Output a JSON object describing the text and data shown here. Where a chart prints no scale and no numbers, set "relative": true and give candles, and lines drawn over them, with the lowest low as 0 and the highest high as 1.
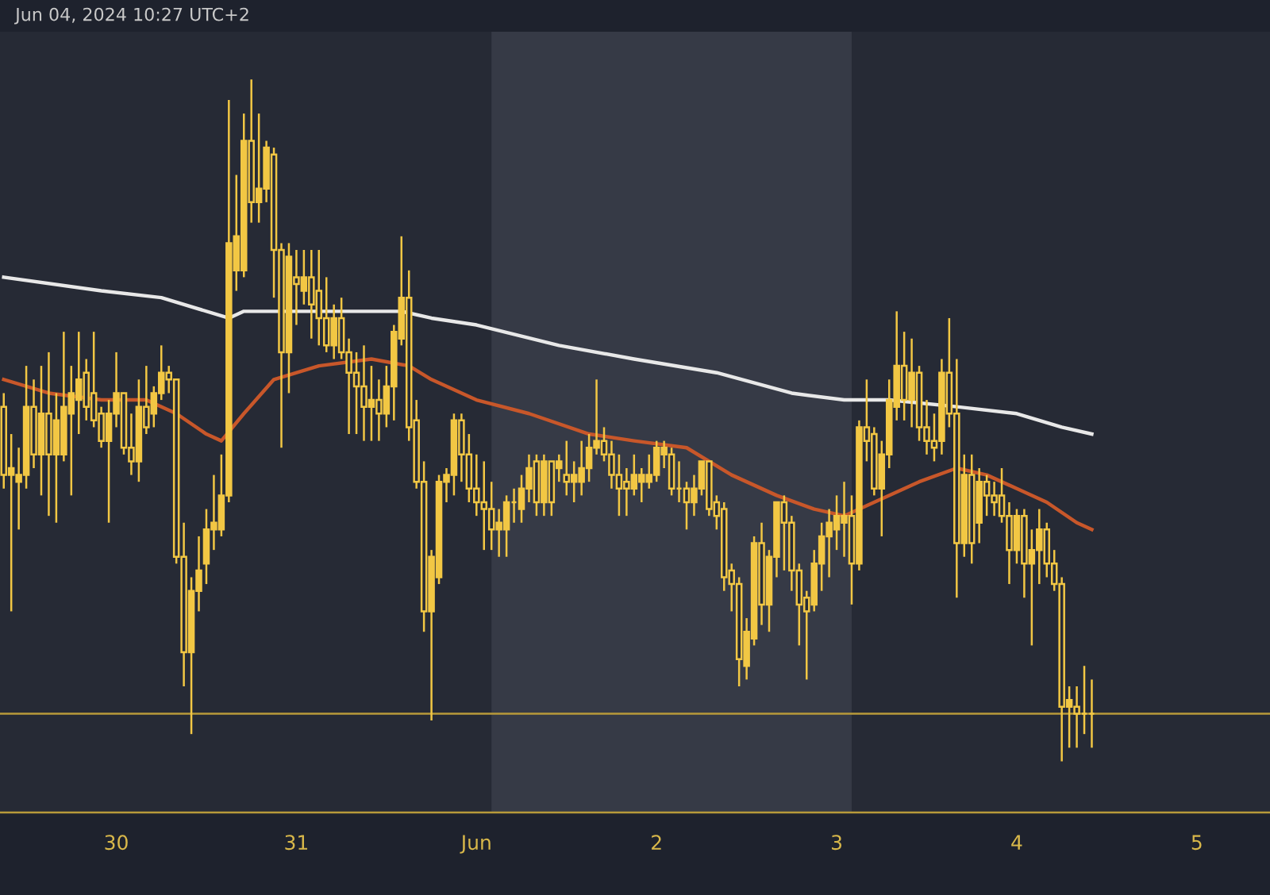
{
  "chart_data": {
    "type": "candlestick",
    "relative": true,
    "annotations": [
      "Jun 04, 2024 10:27 UTC+2"
    ],
    "x": [
      "2024-05-29T09:00",
      "2024-05-29T10:00",
      "2024-05-29T11:00",
      "2024-05-29T12:00",
      "2024-05-29T13:00",
      "2024-05-29T14:00",
      "2024-05-29T15:00",
      "2024-05-29T16:00",
      "2024-05-29T17:00",
      "2024-05-29T18:00",
      "2024-05-29T19:00",
      "2024-05-29T20:00",
      "2024-05-29T21:00",
      "2024-05-29T22:00",
      "2024-05-29T23:00",
      "2024-05-30T00:00",
      "2024-05-30T01:00",
      "2024-05-30T02:00",
      "2024-05-30T03:00",
      "2024-05-30T04:00",
      "2024-05-30T05:00",
      "2024-05-30T06:00",
      "2024-05-30T07:00",
      "2024-05-30T08:00",
      "2024-05-30T09:00",
      "2024-05-30T10:00",
      "2024-05-30T11:00",
      "2024-05-30T12:00",
      "2024-05-30T13:00",
      "2024-05-30T14:00",
      "2024-05-30T15:00",
      "2024-05-30T16:00",
      "2024-05-30T17:00",
      "2024-05-30T18:00",
      "2024-05-30T19:00",
      "2024-05-30T20:00",
      "2024-05-30T21:00",
      "2024-05-30T22:00",
      "2024-05-30T23:00",
      "2024-05-31T00:00",
      "2024-05-31T01:00",
      "2024-05-31T02:00",
      "2024-05-31T03:00",
      "2024-05-31T04:00",
      "2024-05-31T05:00",
      "2024-05-31T06:00",
      "2024-05-31T07:00",
      "2024-05-31T08:00",
      "2024-05-31T09:00",
      "2024-05-31T10:00",
      "2024-05-31T11:00",
      "2024-05-31T12:00",
      "2024-05-31T13:00",
      "2024-05-31T14:00",
      "2024-05-31T15:00",
      "2024-05-31T16:00",
      "2024-05-31T17:00",
      "2024-05-31T18:00",
      "2024-05-31T19:00",
      "2024-05-31T20:00",
      "2024-05-31T21:00",
      "2024-05-31T22:00",
      "2024-05-31T23:00",
      "2024-06-01T00:00",
      "2024-06-01T01:00",
      "2024-06-01T02:00",
      "2024-06-01T03:00",
      "2024-06-01T04:00",
      "2024-06-01T05:00",
      "2024-06-01T06:00",
      "2024-06-01T07:00",
      "2024-06-01T08:00",
      "2024-06-01T09:00",
      "2024-06-01T10:00",
      "2024-06-01T11:00",
      "2024-06-01T12:00",
      "2024-06-01T13:00",
      "2024-06-01T14:00",
      "2024-06-01T15:00",
      "2024-06-01T16:00",
      "2024-06-01T17:00",
      "2024-06-01T18:00",
      "2024-06-01T19:00",
      "2024-06-01T20:00",
      "2024-06-01T21:00",
      "2024-06-01T22:00",
      "2024-06-01T23:00",
      "2024-06-02T00:00",
      "2024-06-02T01:00",
      "2024-06-02T02:00",
      "2024-06-02T03:00",
      "2024-06-02T04:00",
      "2024-06-02T05:00",
      "2024-06-02T06:00",
      "2024-06-02T07:00",
      "2024-06-02T08:00",
      "2024-06-02T09:00",
      "2024-06-02T10:00",
      "2024-06-02T11:00",
      "2024-06-02T12:00",
      "2024-06-02T13:00",
      "2024-06-02T14:00",
      "2024-06-02T15:00",
      "2024-06-02T16:00",
      "2024-06-02T17:00",
      "2024-06-02T18:00",
      "2024-06-02T19:00",
      "2024-06-02T20:00",
      "2024-06-02T21:00",
      "2024-06-02T22:00",
      "2024-06-02T23:00",
      "2024-06-03T00:00",
      "2024-06-03T01:00",
      "2024-06-03T02:00",
      "2024-06-03T03:00",
      "2024-06-03T04:00",
      "2024-06-03T05:00",
      "2024-06-03T06:00",
      "2024-06-03T07:00",
      "2024-06-03T08:00",
      "2024-06-03T09:00",
      "2024-06-03T10:00",
      "2024-06-03T11:00",
      "2024-06-03T12:00",
      "2024-06-03T13:00",
      "2024-06-03T14:00",
      "2024-06-03T15:00",
      "2024-06-03T16:00",
      "2024-06-03T17:00",
      "2024-06-03T18:00",
      "2024-06-03T19:00",
      "2024-06-03T20:00",
      "2024-06-03T21:00",
      "2024-06-03T22:00",
      "2024-06-03T23:00",
      "2024-06-04T00:00",
      "2024-06-04T01:00",
      "2024-06-04T02:00",
      "2024-06-04T03:00",
      "2024-06-04T04:00",
      "2024-06-04T05:00",
      "2024-06-04T06:00",
      "2024-06-04T07:00",
      "2024-06-04T08:00",
      "2024-06-04T09:00",
      "2024-06-04T10:00"
    ],
    "series": [
      {
        "type": "line",
        "color": "#e8e8e8",
        "x": [
          "2024-05-29T09:00",
          "2024-05-29T22:00",
          "2024-05-30T06:00",
          "2024-05-30T15:00",
          "2024-05-30T17:00",
          "2024-05-31T03:00",
          "2024-05-31T14:00",
          "2024-05-31T18:00",
          "2024-06-01T00:00",
          "2024-06-01T11:00",
          "2024-06-01T21:00",
          "2024-06-02T08:00",
          "2024-06-02T18:00",
          "2024-06-03T01:00",
          "2024-06-03T07:00",
          "2024-06-03T16:00",
          "2024-06-04T00:00",
          "2024-06-04T06:00",
          "2024-06-04T10:00"
        ],
        "values": [
          0.71,
          0.69,
          0.68,
          0.65,
          0.66,
          0.66,
          0.66,
          0.65,
          0.64,
          0.61,
          0.59,
          0.57,
          0.54,
          0.53,
          0.53,
          0.52,
          0.51,
          0.49,
          0.48
        ]
      },
      {
        "type": "line",
        "color": "#c8572a",
        "x": [
          "2024-05-29T09:00",
          "2024-05-29T15:00",
          "2024-05-29T22:00",
          "2024-05-30T04:00",
          "2024-05-30T08:00",
          "2024-05-30T12:00",
          "2024-05-30T14:00",
          "2024-05-30T17:00",
          "2024-05-30T21:00",
          "2024-05-31T03:00",
          "2024-05-31T10:00",
          "2024-05-31T15:00",
          "2024-05-31T18:00",
          "2024-06-01T00:00",
          "2024-06-01T07:00",
          "2024-06-01T15:00",
          "2024-06-01T21:00",
          "2024-06-02T04:00",
          "2024-06-02T10:00",
          "2024-06-02T16:00",
          "2024-06-02T21:00",
          "2024-06-03T01:00",
          "2024-06-03T05:00",
          "2024-06-03T11:00",
          "2024-06-03T16:00",
          "2024-06-03T20:00",
          "2024-06-04T00:00",
          "2024-06-04T04:00",
          "2024-06-04T08:00",
          "2024-06-04T10:00"
        ],
        "values": [
          0.56,
          0.54,
          0.53,
          0.53,
          0.51,
          0.48,
          0.47,
          0.51,
          0.56,
          0.58,
          0.59,
          0.58,
          0.56,
          0.53,
          0.51,
          0.48,
          0.47,
          0.46,
          0.42,
          0.39,
          0.37,
          0.36,
          0.38,
          0.41,
          0.43,
          0.42,
          0.4,
          0.38,
          0.35,
          0.34
        ]
      },
      {
        "color": "#f2c744",
        "ohlc": [
          [
            0.52,
            0.54,
            0.4,
            0.42
          ],
          [
            0.42,
            0.48,
            0.22,
            0.43
          ],
          [
            0.41,
            0.46,
            0.34,
            0.42
          ],
          [
            0.42,
            0.58,
            0.4,
            0.52
          ],
          [
            0.52,
            0.56,
            0.43,
            0.45
          ],
          [
            0.45,
            0.58,
            0.39,
            0.51
          ],
          [
            0.51,
            0.6,
            0.36,
            0.45
          ],
          [
            0.45,
            0.54,
            0.35,
            0.5
          ],
          [
            0.45,
            0.63,
            0.44,
            0.52
          ],
          [
            0.51,
            0.58,
            0.39,
            0.54
          ],
          [
            0.53,
            0.63,
            0.48,
            0.56
          ],
          [
            0.57,
            0.59,
            0.5,
            0.52
          ],
          [
            0.54,
            0.63,
            0.49,
            0.5
          ],
          [
            0.51,
            0.52,
            0.46,
            0.47
          ],
          [
            0.47,
            0.53,
            0.35,
            0.51
          ],
          [
            0.51,
            0.6,
            0.49,
            0.54
          ],
          [
            0.54,
            0.54,
            0.45,
            0.46
          ],
          [
            0.46,
            0.51,
            0.42,
            0.44
          ],
          [
            0.44,
            0.56,
            0.41,
            0.52
          ],
          [
            0.52,
            0.58,
            0.48,
            0.49
          ],
          [
            0.51,
            0.55,
            0.49,
            0.54
          ],
          [
            0.54,
            0.61,
            0.53,
            0.57
          ],
          [
            0.57,
            0.58,
            0.54,
            0.56
          ],
          [
            0.56,
            0.56,
            0.29,
            0.3
          ],
          [
            0.3,
            0.35,
            0.11,
            0.16
          ],
          [
            0.16,
            0.27,
            0.04,
            0.25
          ],
          [
            0.25,
            0.33,
            0.22,
            0.28
          ],
          [
            0.29,
            0.37,
            0.26,
            0.34
          ],
          [
            0.34,
            0.42,
            0.31,
            0.35
          ],
          [
            0.34,
            0.45,
            0.33,
            0.39
          ],
          [
            0.39,
            0.97,
            0.38,
            0.76
          ],
          [
            0.72,
            0.86,
            0.69,
            0.77
          ],
          [
            0.72,
            0.95,
            0.71,
            0.91
          ],
          [
            0.91,
            1.0,
            0.79,
            0.82
          ],
          [
            0.82,
            0.95,
            0.79,
            0.84
          ],
          [
            0.84,
            0.91,
            0.82,
            0.9
          ],
          [
            0.89,
            0.9,
            0.68,
            0.75
          ],
          [
            0.75,
            0.76,
            0.46,
            0.6
          ],
          [
            0.6,
            0.76,
            0.54,
            0.74
          ],
          [
            0.71,
            0.75,
            0.64,
            0.7
          ],
          [
            0.69,
            0.75,
            0.67,
            0.71
          ],
          [
            0.71,
            0.75,
            0.62,
            0.67
          ],
          [
            0.69,
            0.75,
            0.61,
            0.65
          ],
          [
            0.65,
            0.71,
            0.6,
            0.61
          ],
          [
            0.61,
            0.67,
            0.59,
            0.65
          ],
          [
            0.65,
            0.68,
            0.59,
            0.6
          ],
          [
            0.6,
            0.62,
            0.48,
            0.57
          ],
          [
            0.57,
            0.6,
            0.48,
            0.55
          ],
          [
            0.55,
            0.61,
            0.47,
            0.52
          ],
          [
            0.52,
            0.58,
            0.47,
            0.53
          ],
          [
            0.53,
            0.56,
            0.47,
            0.51
          ],
          [
            0.51,
            0.58,
            0.49,
            0.55
          ],
          [
            0.55,
            0.64,
            0.5,
            0.63
          ],
          [
            0.62,
            0.77,
            0.61,
            0.68
          ],
          [
            0.68,
            0.72,
            0.47,
            0.49
          ],
          [
            0.5,
            0.53,
            0.4,
            0.41
          ],
          [
            0.41,
            0.44,
            0.19,
            0.22
          ],
          [
            0.22,
            0.31,
            0.06,
            0.3
          ],
          [
            0.27,
            0.42,
            0.26,
            0.41
          ],
          [
            0.41,
            0.43,
            0.38,
            0.42
          ],
          [
            0.42,
            0.51,
            0.39,
            0.5
          ],
          [
            0.5,
            0.51,
            0.41,
            0.45
          ],
          [
            0.45,
            0.48,
            0.38,
            0.4
          ],
          [
            0.4,
            0.45,
            0.36,
            0.38
          ],
          [
            0.38,
            0.44,
            0.31,
            0.37
          ],
          [
            0.37,
            0.41,
            0.31,
            0.34
          ],
          [
            0.34,
            0.37,
            0.3,
            0.35
          ],
          [
            0.34,
            0.39,
            0.3,
            0.38
          ],
          [
            0.38,
            0.4,
            0.35,
            0.38
          ],
          [
            0.37,
            0.42,
            0.35,
            0.4
          ],
          [
            0.4,
            0.45,
            0.38,
            0.43
          ],
          [
            0.44,
            0.45,
            0.36,
            0.38
          ],
          [
            0.38,
            0.45,
            0.36,
            0.44
          ],
          [
            0.44,
            0.44,
            0.36,
            0.38
          ],
          [
            0.43,
            0.45,
            0.41,
            0.44
          ],
          [
            0.42,
            0.47,
            0.39,
            0.41
          ],
          [
            0.41,
            0.44,
            0.38,
            0.42
          ],
          [
            0.41,
            0.47,
            0.39,
            0.43
          ],
          [
            0.43,
            0.48,
            0.41,
            0.46
          ],
          [
            0.46,
            0.56,
            0.45,
            0.47
          ],
          [
            0.47,
            0.49,
            0.44,
            0.45
          ],
          [
            0.45,
            0.47,
            0.4,
            0.42
          ],
          [
            0.42,
            0.45,
            0.36,
            0.4
          ],
          [
            0.41,
            0.43,
            0.36,
            0.4
          ],
          [
            0.4,
            0.45,
            0.39,
            0.42
          ],
          [
            0.41,
            0.43,
            0.38,
            0.42
          ],
          [
            0.41,
            0.45,
            0.4,
            0.42
          ],
          [
            0.42,
            0.47,
            0.41,
            0.46
          ],
          [
            0.45,
            0.47,
            0.43,
            0.46
          ],
          [
            0.45,
            0.46,
            0.39,
            0.4
          ],
          [
            0.4,
            0.44,
            0.38,
            0.4
          ],
          [
            0.4,
            0.41,
            0.34,
            0.38
          ],
          [
            0.38,
            0.42,
            0.36,
            0.4
          ],
          [
            0.4,
            0.44,
            0.39,
            0.44
          ],
          [
            0.44,
            0.44,
            0.36,
            0.37
          ],
          [
            0.38,
            0.39,
            0.34,
            0.36
          ],
          [
            0.37,
            0.38,
            0.25,
            0.27
          ],
          [
            0.28,
            0.29,
            0.22,
            0.26
          ],
          [
            0.26,
            0.27,
            0.11,
            0.15
          ],
          [
            0.14,
            0.21,
            0.12,
            0.19
          ],
          [
            0.18,
            0.33,
            0.17,
            0.32
          ],
          [
            0.32,
            0.35,
            0.2,
            0.23
          ],
          [
            0.23,
            0.31,
            0.19,
            0.3
          ],
          [
            0.3,
            0.38,
            0.27,
            0.38
          ],
          [
            0.38,
            0.39,
            0.28,
            0.35
          ],
          [
            0.35,
            0.36,
            0.25,
            0.28
          ],
          [
            0.28,
            0.29,
            0.17,
            0.23
          ],
          [
            0.24,
            0.25,
            0.12,
            0.22
          ],
          [
            0.23,
            0.31,
            0.22,
            0.29
          ],
          [
            0.29,
            0.35,
            0.25,
            0.33
          ],
          [
            0.33,
            0.37,
            0.27,
            0.35
          ],
          [
            0.34,
            0.39,
            0.31,
            0.36
          ],
          [
            0.35,
            0.41,
            0.3,
            0.36
          ],
          [
            0.36,
            0.39,
            0.23,
            0.29
          ],
          [
            0.29,
            0.5,
            0.28,
            0.49
          ],
          [
            0.49,
            0.56,
            0.44,
            0.47
          ],
          [
            0.48,
            0.49,
            0.39,
            0.4
          ],
          [
            0.4,
            0.47,
            0.33,
            0.45
          ],
          [
            0.45,
            0.56,
            0.43,
            0.53
          ],
          [
            0.52,
            0.66,
            0.5,
            0.58
          ],
          [
            0.58,
            0.63,
            0.5,
            0.53
          ],
          [
            0.53,
            0.62,
            0.49,
            0.57
          ],
          [
            0.57,
            0.58,
            0.47,
            0.49
          ],
          [
            0.49,
            0.53,
            0.45,
            0.47
          ],
          [
            0.47,
            0.51,
            0.44,
            0.46
          ],
          [
            0.47,
            0.59,
            0.45,
            0.57
          ],
          [
            0.57,
            0.65,
            0.49,
            0.51
          ],
          [
            0.51,
            0.59,
            0.24,
            0.32
          ],
          [
            0.32,
            0.45,
            0.3,
            0.42
          ],
          [
            0.42,
            0.45,
            0.29,
            0.32
          ],
          [
            0.35,
            0.43,
            0.32,
            0.41
          ],
          [
            0.41,
            0.42,
            0.36,
            0.39
          ],
          [
            0.39,
            0.41,
            0.36,
            0.38
          ],
          [
            0.39,
            0.43,
            0.35,
            0.36
          ],
          [
            0.36,
            0.38,
            0.26,
            0.31
          ],
          [
            0.31,
            0.37,
            0.29,
            0.36
          ],
          [
            0.36,
            0.37,
            0.24,
            0.29
          ],
          [
            0.29,
            0.34,
            0.17,
            0.31
          ],
          [
            0.31,
            0.37,
            0.26,
            0.34
          ],
          [
            0.34,
            0.35,
            0.27,
            0.29
          ],
          [
            0.29,
            0.31,
            0.25,
            0.26
          ],
          [
            0.26,
            0.27,
            0.0,
            0.08
          ],
          [
            0.08,
            0.11,
            0.02,
            0.09
          ],
          [
            0.08,
            0.11,
            0.02,
            0.07
          ],
          [
            0.07,
            0.14,
            0.04,
            0.07
          ],
          [
            0.07,
            0.12,
            0.02,
            0.07
          ]
        ]
      }
    ],
    "xlim": [
      "2024-05-29T08:30",
      "2024-06-05T09:45"
    ],
    "xticks": [
      {
        "value": "2024-05-30",
        "label": "30"
      },
      {
        "value": "2024-05-31",
        "label": "31"
      },
      {
        "value": "2024-06-01",
        "label": "Jun"
      },
      {
        "value": "2024-06-02",
        "label": "2"
      },
      {
        "value": "2024-06-03",
        "label": "3"
      },
      {
        "value": "2024-06-04",
        "label": "4"
      },
      {
        "value": "2024-06-05",
        "label": "5"
      }
    ],
    "ref_lines": [
      {
        "axis": "y",
        "value": 0.07,
        "color": "#b89a3a"
      }
    ],
    "bands": [
      {
        "axis": "x",
        "from": "2024-06-01T02:00",
        "to": "2024-06-03T02:00",
        "color": "#363a46"
      }
    ],
    "grid": false
  }
}
